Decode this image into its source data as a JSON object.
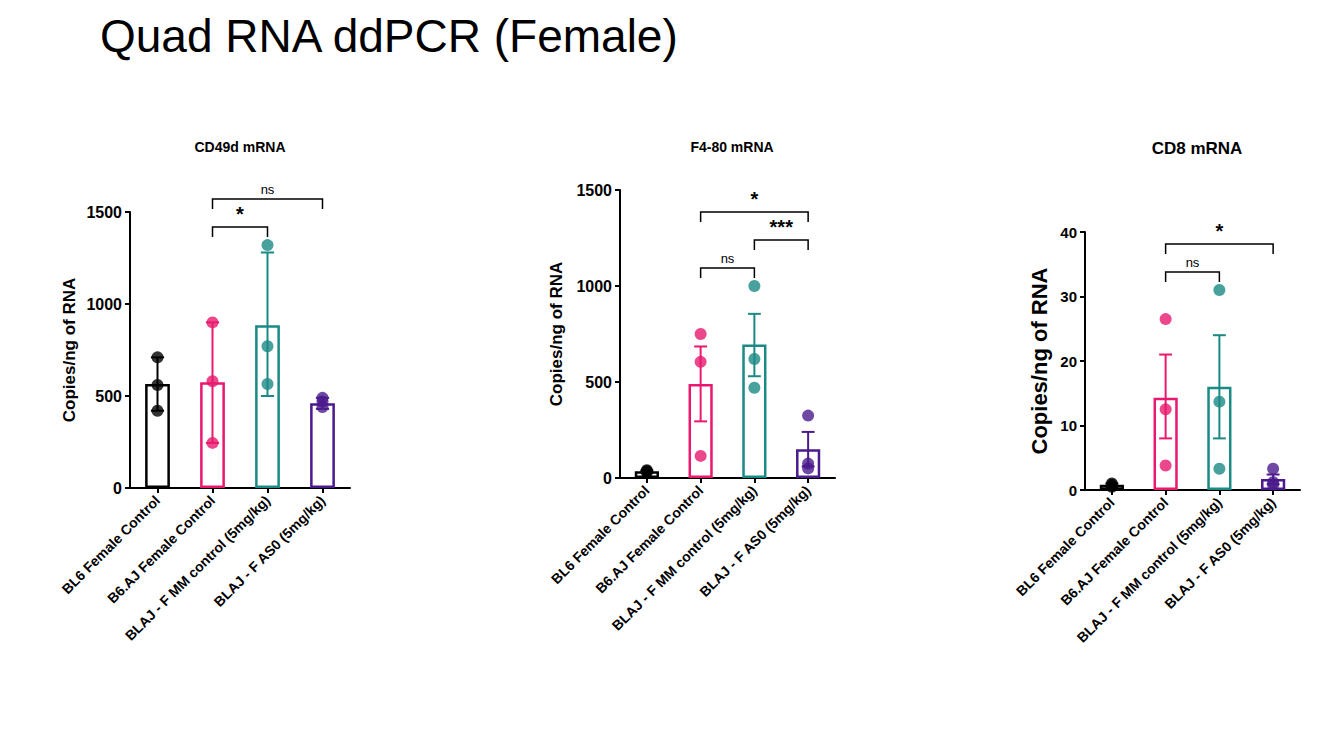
{
  "title": "Quad RNA ddPCR (Female)",
  "chart_data": [
    {
      "type": "bar",
      "title": "CD49d mRNA",
      "y_label": "Copies/ng of RNA",
      "categories": [
        "BL6 Female Control",
        "B6.AJ Female Control",
        "BLAJ - F MM control (5mg/kg)",
        "BLAJ - F AS0 (5mg/kg)"
      ],
      "values": [
        565,
        575,
        885,
        460
      ],
      "points": [
        [
          710,
          560,
          420
        ],
        [
          900,
          580,
          245
        ],
        [
          1320,
          770,
          565
        ],
        [
          490,
          470,
          440
        ]
      ],
      "error_bars": [
        [
          420,
          710
        ],
        [
          245,
          900
        ],
        [
          500,
          1280
        ],
        [
          430,
          490
        ]
      ],
      "colors": [
        "#000000",
        "#e8196e",
        "#1a8a85",
        "#4b1a8c"
      ],
      "ylim": [
        0,
        1500
      ],
      "yticks": [
        0,
        500,
        1000,
        1500
      ],
      "grid": false,
      "annotations": [
        {
          "between": [
            "B6.AJ Female Control",
            "BLAJ - F MM control (5mg/kg)"
          ],
          "label": "*"
        },
        {
          "between": [
            "B6.AJ Female Control",
            "BLAJ - F AS0 (5mg/kg)"
          ],
          "label": "ns"
        }
      ]
    },
    {
      "type": "bar",
      "title": "F4-80 mRNA",
      "y_label": "Copies/ng of RNA",
      "categories": [
        "BL6 Female Control",
        "B6.AJ Female Control",
        "BLAJ - F MM control (5mg/kg)",
        "BLAJ - F AS0 (5mg/kg)"
      ],
      "values": [
        35,
        490,
        695,
        150
      ],
      "points": [
        [
          30,
          40,
          35
        ],
        [
          750,
          605,
          115
        ],
        [
          1000,
          620,
          470
        ],
        [
          325,
          75,
          50
        ]
      ],
      "error_bars": [
        [
          30,
          40
        ],
        [
          295,
          685
        ],
        [
          530,
          855
        ],
        [
          60,
          240
        ]
      ],
      "colors": [
        "#000000",
        "#e8196e",
        "#1a8a85",
        "#4b1a8c"
      ],
      "ylim": [
        0,
        1500
      ],
      "yticks": [
        0,
        500,
        1000,
        1500
      ],
      "grid": false,
      "annotations": [
        {
          "between": [
            "B6.AJ Female Control",
            "BLAJ - F MM control (5mg/kg)"
          ],
          "label": "ns"
        },
        {
          "between": [
            "BLAJ - F MM control (5mg/kg)",
            "BLAJ - F AS0 (5mg/kg)"
          ],
          "label": "***"
        },
        {
          "between": [
            "B6.AJ Female Control",
            "BLAJ - F AS0 (5mg/kg)"
          ],
          "label": "*"
        }
      ]
    },
    {
      "type": "bar",
      "title": "CD8 mRNA",
      "y_label": "Copies/ng of RNA",
      "categories": [
        "BL6 Female Control",
        "B6.AJ Female Control",
        "BLAJ - F MM control (5mg/kg)",
        "BLAJ - F AS0 (5mg/kg)"
      ],
      "values": [
        0.8,
        14.3,
        16,
        1.7
      ],
      "points": [
        [
          0.5,
          1,
          0.8
        ],
        [
          26.5,
          12.5,
          3.8
        ],
        [
          31,
          13.7,
          3.3
        ],
        [
          3.3,
          1.2,
          0.8
        ]
      ],
      "error_bars": [
        [
          0.5,
          1
        ],
        [
          8,
          21
        ],
        [
          8,
          24
        ],
        [
          0.9,
          2.4
        ]
      ],
      "colors": [
        "#000000",
        "#e8196e",
        "#1a8a85",
        "#4b1a8c"
      ],
      "ylim": [
        0,
        40
      ],
      "yticks": [
        0,
        10,
        20,
        30,
        40
      ],
      "grid": false,
      "annotations": [
        {
          "between": [
            "B6.AJ Female Control",
            "BLAJ - F MM control (5mg/kg)"
          ],
          "label": "ns"
        },
        {
          "between": [
            "B6.AJ Female Control",
            "BLAJ - F AS0 (5mg/kg)"
          ],
          "label": "*"
        }
      ]
    }
  ]
}
